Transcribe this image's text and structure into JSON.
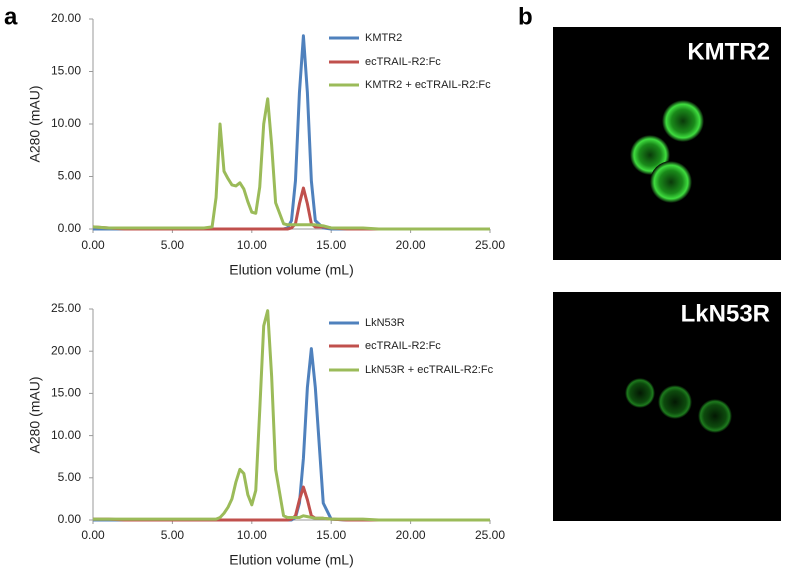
{
  "panel_labels": [
    "a",
    "b"
  ],
  "images": [
    {
      "label": "KMTR2"
    },
    {
      "label": "LkN53R"
    }
  ],
  "chart_data": [
    {
      "type": "line",
      "xlabel": "Elution volume (mL)",
      "ylabel": "A280 (mAU)",
      "legend": "upper right",
      "x": [
        0,
        1,
        2,
        3,
        4,
        5,
        6,
        7,
        7.5,
        7.75,
        8,
        8.25,
        8.5,
        8.75,
        9,
        9.25,
        9.5,
        9.75,
        10,
        10.25,
        10.5,
        10.75,
        11,
        11.25,
        11.5,
        12,
        12.25,
        12.5,
        12.75,
        13,
        13.25,
        13.5,
        13.75,
        14,
        14.5,
        15,
        16,
        17,
        18,
        19,
        20,
        21,
        22,
        23,
        24,
        25
      ],
      "xlim": [
        0,
        25
      ],
      "xticks": [
        {
          "value": 0,
          "label": "0.00"
        },
        {
          "value": 5,
          "label": "5.00"
        },
        {
          "value": 10,
          "label": "10.00"
        },
        {
          "value": 15,
          "label": "15.00"
        },
        {
          "value": 20,
          "label": "20.00"
        },
        {
          "value": 25,
          "label": "25.00"
        }
      ],
      "ylim": [
        0,
        20
      ],
      "yticks": [
        {
          "value": 0,
          "label": "0.00"
        },
        {
          "value": 5,
          "label": "5.00"
        },
        {
          "value": 10,
          "label": "10.00"
        },
        {
          "value": 15,
          "label": "15.00"
        },
        {
          "value": 20,
          "label": "20.00"
        }
      ],
      "series": [
        {
          "name": "KMTR2",
          "color": "#4f81bd",
          "values": [
            0,
            0,
            0,
            0,
            0,
            0,
            0,
            0,
            0,
            0,
            0,
            0,
            0,
            0,
            0,
            0,
            0,
            0,
            0,
            0,
            0,
            0,
            0,
            0,
            0,
            0,
            0.1,
            0.8,
            4.6,
            13.0,
            18.4,
            13.0,
            4.6,
            0.8,
            0.1,
            0,
            0,
            0,
            0,
            0,
            0,
            0,
            0,
            0,
            0,
            0
          ]
        },
        {
          "name": "ecTRAIL-R2:Fc",
          "color": "#c0504d",
          "values": [
            0.2,
            0.1,
            0,
            0,
            0,
            0,
            0,
            0,
            0,
            0,
            0,
            0,
            0,
            0,
            0,
            0,
            0,
            0,
            0,
            0,
            0,
            0,
            0,
            0,
            0,
            0,
            0,
            0.1,
            0.5,
            2.4,
            3.9,
            2.4,
            0.5,
            0.2,
            0.2,
            0.1,
            0,
            0,
            0,
            0,
            0,
            0,
            0,
            0,
            0,
            0
          ]
        },
        {
          "name": "KMTR2 + ecTRAIL-R2:Fc",
          "color": "#9bbb59",
          "values": [
            0.2,
            0.1,
            0.1,
            0.1,
            0.1,
            0.1,
            0.1,
            0.1,
            0.2,
            3.0,
            10.0,
            5.5,
            4.8,
            4.2,
            4.1,
            4.4,
            3.8,
            2.6,
            1.6,
            1.5,
            4.0,
            10.0,
            12.4,
            8.0,
            2.5,
            0.5,
            0.4,
            0.4,
            0.4,
            0.4,
            0.4,
            0.4,
            0.4,
            0.4,
            0.3,
            0.1,
            0.1,
            0.1,
            0,
            0,
            0,
            0,
            0,
            0,
            0,
            0
          ]
        }
      ]
    },
    {
      "type": "line",
      "xlabel": "Elution volume (mL)",
      "ylabel": "A280 (mAU)",
      "legend": "upper right",
      "x": [
        0,
        1,
        2,
        3,
        4,
        5,
        6,
        7,
        7.5,
        7.75,
        8,
        8.25,
        8.5,
        8.75,
        9,
        9.25,
        9.5,
        9.75,
        10,
        10.25,
        10.5,
        10.75,
        11,
        11.25,
        11.5,
        12,
        12.25,
        12.5,
        12.75,
        13,
        13.25,
        13.5,
        13.75,
        14,
        14.5,
        15,
        16,
        17,
        18,
        19,
        20,
        21,
        22,
        23,
        24,
        25
      ],
      "xlim": [
        0,
        25
      ],
      "xticks": [
        {
          "value": 0,
          "label": "0.00"
        },
        {
          "value": 5,
          "label": "5.00"
        },
        {
          "value": 10,
          "label": "10.00"
        },
        {
          "value": 15,
          "label": "15.00"
        },
        {
          "value": 20,
          "label": "20.00"
        },
        {
          "value": 25,
          "label": "25.00"
        }
      ],
      "ylim": [
        0,
        25
      ],
      "yticks": [
        {
          "value": 0,
          "label": "0.00"
        },
        {
          "value": 5,
          "label": "5.00"
        },
        {
          "value": 10,
          "label": "10.00"
        },
        {
          "value": 15,
          "label": "15.00"
        },
        {
          "value": 20,
          "label": "20.00"
        },
        {
          "value": 25,
          "label": "25.00"
        }
      ],
      "series": [
        {
          "name": "LkN53R",
          "color": "#4f81bd",
          "values": [
            0,
            0,
            0,
            0,
            0,
            0,
            0,
            0,
            0,
            0,
            0,
            0,
            0,
            0,
            0,
            0,
            0,
            0,
            0,
            0,
            0,
            0,
            0,
            0,
            0,
            0,
            0,
            0,
            0.3,
            2.0,
            7.3,
            15.7,
            20.3,
            15.7,
            2.0,
            0.1,
            0,
            0,
            0,
            0,
            0,
            0,
            0,
            0,
            0,
            0
          ]
        },
        {
          "name": "ecTRAIL-R2:Fc",
          "color": "#c0504d",
          "values": [
            0.1,
            0.1,
            0,
            0,
            0,
            0,
            0,
            0,
            0,
            0,
            0,
            0,
            0,
            0,
            0,
            0,
            0,
            0,
            0,
            0,
            0,
            0,
            0,
            0,
            0,
            0,
            0,
            0.1,
            0.5,
            2.4,
            3.9,
            2.4,
            0.5,
            0.2,
            0.2,
            0.1,
            0,
            0,
            0,
            0,
            0,
            0,
            0,
            0,
            0,
            0
          ]
        },
        {
          "name": "LkN53R + ecTRAIL-R2:Fc",
          "color": "#9bbb59",
          "values": [
            0.1,
            0.1,
            0.1,
            0.1,
            0.1,
            0.1,
            0.1,
            0.1,
            0.1,
            0.1,
            0.3,
            0.8,
            1.5,
            2.5,
            4.5,
            6.0,
            5.5,
            3.0,
            1.8,
            3.5,
            13.0,
            23.0,
            24.8,
            17.0,
            6.0,
            0.5,
            0.3,
            0.3,
            0.3,
            0.3,
            0.5,
            0.4,
            0.3,
            0.2,
            0.2,
            0.1,
            0.1,
            0.1,
            0,
            0,
            0,
            0,
            0,
            0,
            0,
            0
          ]
        }
      ]
    }
  ]
}
